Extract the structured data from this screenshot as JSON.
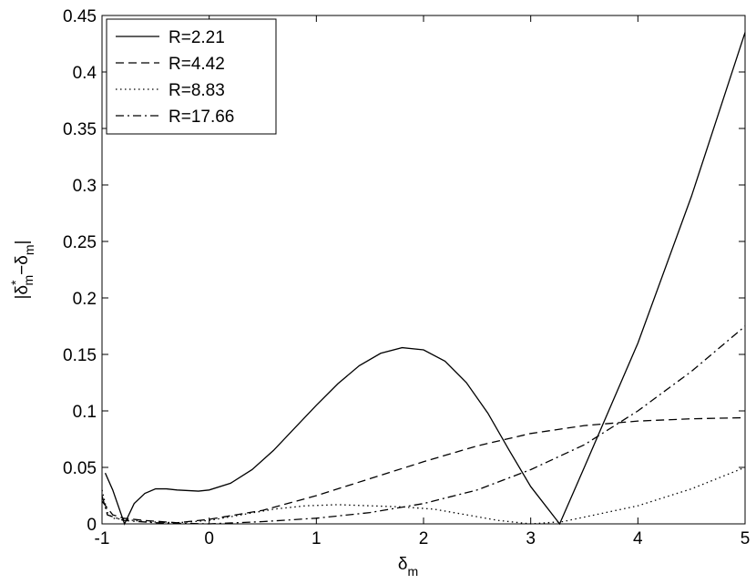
{
  "chart_data": {
    "type": "line",
    "xlabel": [
      "δ",
      "m"
    ],
    "ylabel": [
      "|δ",
      "*",
      "m",
      "−δ",
      "m",
      "|"
    ],
    "xlim": [
      -1,
      5
    ],
    "xticks": [
      -1,
      0,
      1,
      2,
      3,
      4,
      5
    ],
    "ylim": [
      0,
      0.45
    ],
    "yticks": [
      0,
      0.05,
      0.1,
      0.15,
      0.2,
      0.25,
      0.3,
      0.35,
      0.4,
      0.45
    ],
    "legend": "upper-left",
    "series": [
      {
        "name": "R=2.21",
        "color": "#000000",
        "linestyle": "solid",
        "x": [
          -0.97,
          -0.9,
          -0.79,
          -0.7,
          -0.6,
          -0.5,
          -0.4,
          -0.3,
          -0.1,
          0,
          0.2,
          0.4,
          0.6,
          0.8,
          1.0,
          1.2,
          1.4,
          1.6,
          1.8,
          2.0,
          2.2,
          2.4,
          2.6,
          2.8,
          3.0,
          3.27,
          3.5,
          4.0,
          4.5,
          5.0
        ],
        "values": [
          0.045,
          0.03,
          0.0,
          0.018,
          0.027,
          0.031,
          0.031,
          0.03,
          0.029,
          0.03,
          0.036,
          0.048,
          0.065,
          0.085,
          0.105,
          0.124,
          0.14,
          0.151,
          0.156,
          0.154,
          0.144,
          0.125,
          0.098,
          0.065,
          0.033,
          0.0,
          0.05,
          0.16,
          0.29,
          0.435
        ]
      },
      {
        "name": "R=4.42",
        "color": "#000000",
        "linestyle": "dashed",
        "x": [
          -1,
          -0.9,
          -0.8,
          -0.6,
          -0.3,
          0,
          0.5,
          1.0,
          1.5,
          2.0,
          2.5,
          3.0,
          3.5,
          4.0,
          4.5,
          5.0
        ],
        "values": [
          0.02,
          0.008,
          0.005,
          0.003,
          0.001,
          0.004,
          0.012,
          0.025,
          0.04,
          0.055,
          0.069,
          0.08,
          0.087,
          0.091,
          0.093,
          0.094
        ]
      },
      {
        "name": "R=8.83",
        "color": "#000000",
        "linestyle": "dotted",
        "x": [
          -1,
          -0.95,
          -0.9,
          -0.6,
          -0.3,
          0,
          0.3,
          0.6,
          0.9,
          1.2,
          1.5,
          1.8,
          2.1,
          2.4,
          2.7,
          3.0,
          3.3,
          3.6,
          4.0,
          4.5,
          5.0
        ],
        "values": [
          0.03,
          0.01,
          0.005,
          0.002,
          0.001,
          0.003,
          0.008,
          0.013,
          0.016,
          0.017,
          0.016,
          0.015,
          0.013,
          0.008,
          0.003,
          0.0,
          0.002,
          0.008,
          0.016,
          0.031,
          0.05
        ]
      },
      {
        "name": "R=17.66",
        "color": "#000000",
        "linestyle": "dashdot",
        "x": [
          -1,
          -0.95,
          -0.8,
          -0.5,
          0,
          0.5,
          1.0,
          1.5,
          2.0,
          2.5,
          3.0,
          3.5,
          4.0,
          4.5,
          5.0
        ],
        "values": [
          0.025,
          0.008,
          0.003,
          0.001,
          0.0,
          0.002,
          0.005,
          0.01,
          0.018,
          0.03,
          0.048,
          0.07,
          0.1,
          0.135,
          0.175
        ]
      }
    ]
  }
}
